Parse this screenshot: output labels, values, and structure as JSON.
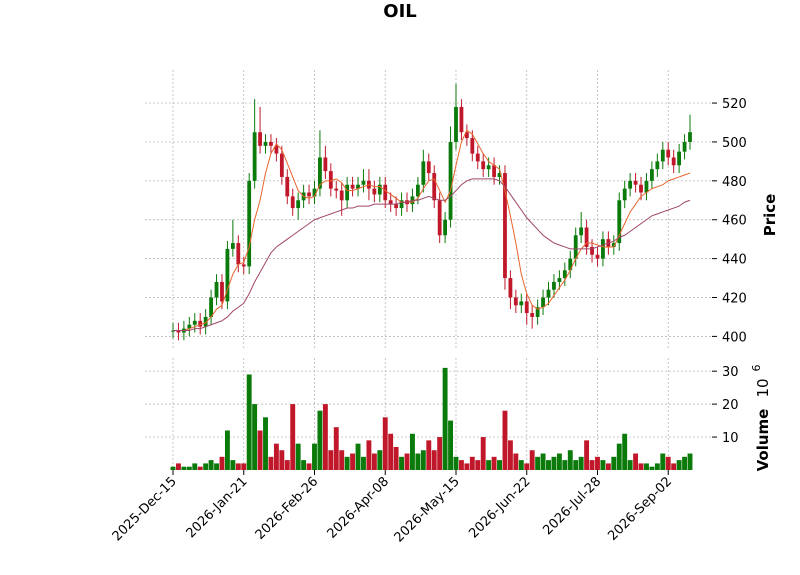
{
  "chart_data": {
    "type": "candlestick",
    "title": "OIL",
    "x": [
      "2025-Dec-15",
      null,
      null,
      null,
      null,
      null,
      null,
      null,
      null,
      null,
      null,
      null,
      null,
      "2026-Jan-21",
      null,
      null,
      null,
      null,
      null,
      null,
      null,
      null,
      null,
      null,
      null,
      null,
      "2026-Feb-26",
      null,
      null,
      null,
      null,
      null,
      null,
      null,
      null,
      null,
      null,
      null,
      null,
      "2026-Apr-08",
      null,
      null,
      null,
      null,
      null,
      null,
      null,
      null,
      null,
      null,
      null,
      null,
      "2026-May-15",
      null,
      null,
      null,
      null,
      null,
      null,
      null,
      null,
      null,
      null,
      null,
      null,
      "2026-Jun-22",
      null,
      null,
      null,
      null,
      null,
      null,
      null,
      null,
      null,
      null,
      null,
      null,
      "2026-Jul-28",
      null,
      null,
      null,
      null,
      null,
      null,
      null,
      null,
      null,
      null,
      null,
      null,
      "2026-Sep-02",
      null,
      null,
      null,
      null
    ],
    "open": [
      403,
      403,
      402,
      404,
      406,
      408,
      405,
      410,
      420,
      428,
      418,
      445,
      448,
      437,
      436,
      480,
      505,
      498,
      500,
      498,
      494,
      482,
      472,
      466,
      470,
      474,
      472,
      476,
      492,
      485,
      476,
      475,
      470,
      478,
      476,
      478,
      480,
      476,
      473,
      478,
      470,
      468,
      466,
      470,
      468,
      472,
      478,
      490,
      484,
      470,
      452,
      460,
      500,
      518,
      505,
      502,
      494,
      490,
      486,
      488,
      482,
      484,
      430,
      420,
      416,
      418,
      412,
      410,
      415,
      420,
      424,
      428,
      430,
      434,
      440,
      452,
      456,
      446,
      442,
      440,
      450,
      446,
      448,
      470,
      476,
      480,
      478,
      474,
      480,
      486,
      490,
      496,
      492,
      488,
      495,
      500
    ],
    "high": [
      407,
      407,
      408,
      410,
      412,
      412,
      414,
      424,
      432,
      432,
      449,
      460,
      452,
      441,
      484,
      522,
      518,
      504,
      504,
      502,
      498,
      486,
      476,
      474,
      478,
      478,
      480,
      506,
      498,
      489,
      480,
      479,
      482,
      482,
      482,
      486,
      486,
      480,
      482,
      482,
      474,
      472,
      474,
      474,
      476,
      482,
      496,
      494,
      488,
      474,
      464,
      508,
      530,
      522,
      509,
      506,
      498,
      494,
      492,
      492,
      488,
      488,
      434,
      424,
      422,
      422,
      416,
      419,
      424,
      428,
      432,
      434,
      438,
      444,
      456,
      464,
      460,
      450,
      446,
      454,
      454,
      452,
      474,
      480,
      484,
      484,
      482,
      484,
      490,
      494,
      500,
      500,
      496,
      499,
      504,
      514
    ],
    "low": [
      399,
      398,
      398,
      400,
      402,
      401,
      401,
      406,
      416,
      414,
      414,
      441,
      433,
      432,
      432,
      476,
      494,
      494,
      494,
      490,
      478,
      468,
      462,
      460,
      466,
      468,
      468,
      472,
      481,
      472,
      471,
      462,
      466,
      472,
      472,
      474,
      470,
      469,
      469,
      466,
      464,
      462,
      462,
      464,
      464,
      468,
      474,
      480,
      466,
      448,
      448,
      456,
      496,
      501,
      498,
      490,
      486,
      482,
      482,
      478,
      478,
      424,
      414,
      412,
      412,
      406,
      404,
      406,
      411,
      416,
      420,
      424,
      426,
      430,
      436,
      448,
      442,
      438,
      436,
      436,
      442,
      442,
      444,
      466,
      472,
      474,
      470,
      470,
      476,
      482,
      486,
      488,
      484,
      484,
      491,
      496
    ],
    "close": [
      403,
      402,
      404,
      406,
      408,
      405,
      410,
      420,
      428,
      418,
      445,
      448,
      437,
      436,
      480,
      505,
      498,
      500,
      498,
      494,
      482,
      472,
      466,
      470,
      474,
      472,
      476,
      492,
      485,
      476,
      475,
      470,
      478,
      476,
      478,
      480,
      476,
      473,
      478,
      470,
      468,
      466,
      470,
      468,
      472,
      478,
      490,
      484,
      470,
      452,
      460,
      500,
      518,
      505,
      502,
      494,
      490,
      486,
      488,
      482,
      484,
      430,
      420,
      416,
      418,
      412,
      410,
      415,
      420,
      424,
      428,
      430,
      434,
      440,
      452,
      456,
      446,
      442,
      440,
      450,
      446,
      448,
      470,
      476,
      480,
      478,
      474,
      480,
      486,
      490,
      496,
      492,
      488,
      495,
      500,
      505
    ],
    "volume": [
      1,
      2,
      1,
      1,
      2,
      1,
      2,
      3,
      2,
      4,
      12,
      3,
      2,
      2,
      29,
      20,
      12,
      16,
      4,
      8,
      6,
      3,
      20,
      8,
      3,
      2,
      8,
      18,
      20,
      6,
      13,
      6,
      4,
      5,
      8,
      4,
      9,
      5,
      6,
      16,
      11,
      7,
      4,
      5,
      11,
      5,
      6,
      9,
      6,
      10,
      31,
      15,
      4,
      3,
      2,
      4,
      3,
      10,
      3,
      4,
      3,
      18,
      9,
      5,
      3,
      2,
      6,
      4,
      5,
      3,
      4,
      5,
      3,
      6,
      3,
      4,
      9,
      3,
      4,
      3,
      2,
      4,
      8,
      11,
      3,
      5,
      2,
      2,
      1,
      2,
      5,
      4,
      2,
      3,
      4,
      5
    ],
    "moving_averages": [
      {
        "color": "#e8642c",
        "values": [
          403,
          403,
          403,
          404,
          405,
          406,
          407,
          410,
          414,
          416,
          424,
          432,
          437,
          438,
          446,
          460,
          470,
          484,
          494,
          499,
          496,
          489,
          482,
          475,
          472,
          471,
          472,
          478,
          480,
          480,
          481,
          479,
          475,
          475,
          476,
          477,
          478,
          477,
          477,
          475,
          473,
          471,
          469,
          469,
          469,
          471,
          476,
          480,
          481,
          475,
          469,
          475,
          488,
          500,
          506,
          504,
          499,
          494,
          490,
          488,
          486,
          475,
          462,
          448,
          432,
          422,
          416,
          414,
          415,
          417,
          421,
          425,
          429,
          434,
          440,
          445,
          448,
          448,
          447,
          446,
          446,
          446,
          452,
          458,
          464,
          468,
          472,
          474,
          476,
          477,
          478,
          480,
          481,
          482,
          483,
          484
        ]
      },
      {
        "color": "#a0456b",
        "values": [
          403,
          403,
          403,
          403,
          404,
          404,
          405,
          406,
          407,
          408,
          410,
          413,
          415,
          417,
          422,
          428,
          433,
          438,
          443,
          446,
          448,
          450,
          452,
          454,
          456,
          458,
          460,
          461,
          462,
          463,
          464,
          465,
          466,
          466,
          467,
          467,
          467,
          468,
          468,
          468,
          468,
          468,
          469,
          469,
          470,
          470,
          471,
          472,
          471,
          470,
          470,
          472,
          475,
          478,
          480,
          481,
          481,
          481,
          481,
          481,
          480,
          477,
          473,
          469,
          465,
          461,
          458,
          455,
          452,
          450,
          448,
          447,
          446,
          445,
          445,
          445,
          445,
          445,
          446,
          447,
          448,
          449,
          451,
          452,
          454,
          456,
          458,
          460,
          462,
          463,
          464,
          465,
          466,
          467,
          469,
          470
        ]
      }
    ],
    "up_color": "#0a7a0a",
    "down_color": "#c0182a",
    "ylim": [
      393,
      537
    ],
    "yticks": [
      400,
      420,
      440,
      460,
      480,
      500,
      520
    ],
    "y_label": "Price",
    "volume_ylim": [
      0,
      34
    ],
    "volume_yticks": [
      10,
      20,
      30
    ],
    "volume_label": "Volume",
    "volume_exponent_base": "10",
    "volume_exponent": "6",
    "grid": true
  }
}
